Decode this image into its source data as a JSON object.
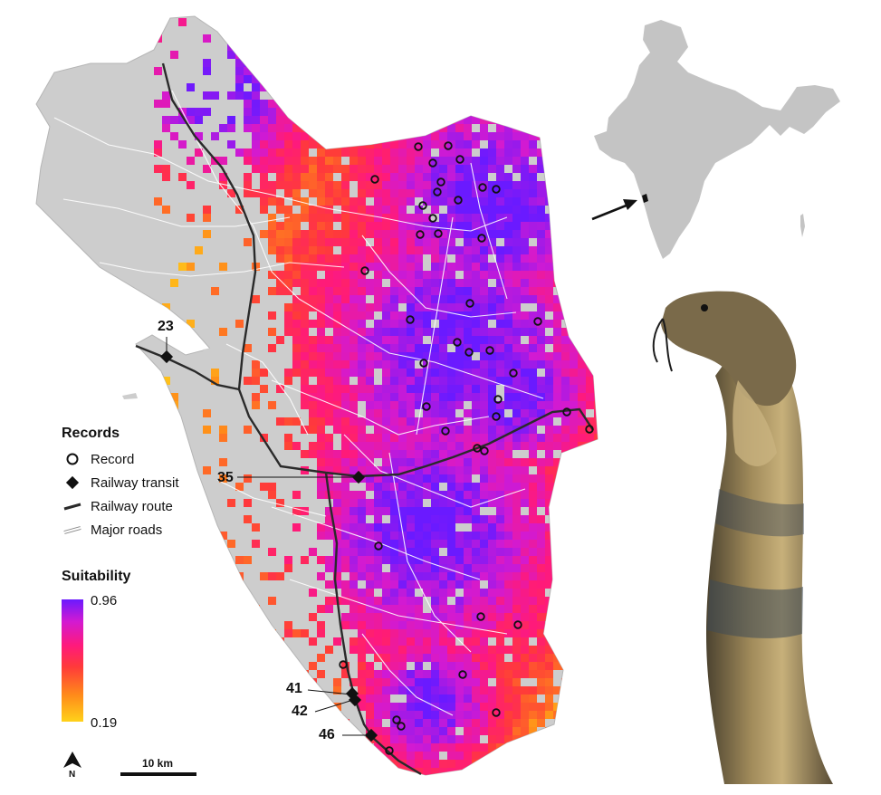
{
  "legend": {
    "records_title": "Records",
    "items": [
      {
        "label": "Record",
        "icon": "open-circle-icon"
      },
      {
        "label": "Railway transit",
        "icon": "diamond-icon"
      },
      {
        "label": "Railway route",
        "icon": "line-icon"
      },
      {
        "label": "Major roads",
        "icon": "road-icon"
      }
    ],
    "suitability_title": "Suitability",
    "max_label": "0.96",
    "min_label": "0.19",
    "ramp_colors": [
      "#ffd21a",
      "#ff8a1a",
      "#ff3a3a",
      "#ff1a7a",
      "#d21ad2",
      "#6a1aff"
    ]
  },
  "transits": [
    {
      "label": "23"
    },
    {
      "label": "35"
    },
    {
      "label": "41"
    },
    {
      "label": "42"
    },
    {
      "label": "46"
    }
  ],
  "scalebar": {
    "label": "10 km"
  },
  "north": {
    "label": "N"
  },
  "colors": {
    "land": "#cdcdcd",
    "road": "#ffffff",
    "rail": "#2a2a2a",
    "india": "#c4c4c4"
  }
}
